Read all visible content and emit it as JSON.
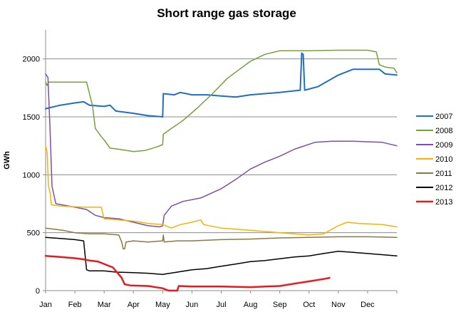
{
  "chart_data": {
    "type": "line",
    "title": "Short range gas storage",
    "xlabel": "",
    "ylabel": "GWh",
    "categories": [
      "Jan",
      "Feb",
      "Mar",
      "Apr",
      "May",
      "Jun",
      "Jul",
      "Aug",
      "Sep",
      "Oct",
      "Nov",
      "Dec"
    ],
    "xlim": [
      0,
      12
    ],
    "ylim": [
      0,
      2250
    ],
    "yticks": [
      0,
      500,
      1000,
      1500,
      2000
    ],
    "grid": true,
    "legend": "right",
    "series": [
      {
        "name": "2007",
        "color": "#1F6FC0",
        "width": 2,
        "points": [
          [
            0,
            1570
          ],
          [
            0.5,
            1600
          ],
          [
            1.0,
            1620
          ],
          [
            1.3,
            1630
          ],
          [
            1.5,
            1600
          ],
          [
            2.0,
            1590
          ],
          [
            2.2,
            1600
          ],
          [
            2.4,
            1550
          ],
          [
            3.0,
            1530
          ],
          [
            3.5,
            1510
          ],
          [
            4.0,
            1500
          ],
          [
            4.02,
            1700
          ],
          [
            4.4,
            1690
          ],
          [
            4.6,
            1710
          ],
          [
            5.0,
            1690
          ],
          [
            5.5,
            1690
          ],
          [
            6.0,
            1680
          ],
          [
            6.5,
            1670
          ],
          [
            7.0,
            1690
          ],
          [
            8.0,
            1710
          ],
          [
            8.7,
            1730
          ],
          [
            8.75,
            2050
          ],
          [
            8.8,
            2040
          ],
          [
            8.85,
            1730
          ],
          [
            9.3,
            1760
          ],
          [
            10.0,
            1860
          ],
          [
            10.5,
            1910
          ],
          [
            11.0,
            1910
          ],
          [
            11.4,
            1910
          ],
          [
            11.6,
            1870
          ],
          [
            12.0,
            1860
          ]
        ]
      },
      {
        "name": "2008",
        "color": "#77A03C",
        "width": 1.5,
        "points": [
          [
            0,
            1800
          ],
          [
            0.05,
            1770
          ],
          [
            0.1,
            1800
          ],
          [
            1.4,
            1800
          ],
          [
            1.6,
            1600
          ],
          [
            1.7,
            1400
          ],
          [
            1.9,
            1330
          ],
          [
            2.0,
            1300
          ],
          [
            2.2,
            1230
          ],
          [
            2.5,
            1220
          ],
          [
            3.0,
            1200
          ],
          [
            3.4,
            1210
          ],
          [
            3.8,
            1240
          ],
          [
            4.0,
            1260
          ],
          [
            4.02,
            1350
          ],
          [
            4.3,
            1400
          ],
          [
            4.7,
            1470
          ],
          [
            5.2,
            1580
          ],
          [
            5.7,
            1700
          ],
          [
            6.2,
            1830
          ],
          [
            7.0,
            1980
          ],
          [
            7.5,
            2040
          ],
          [
            8.0,
            2070
          ],
          [
            9.0,
            2070
          ],
          [
            10.0,
            2075
          ],
          [
            11.0,
            2075
          ],
          [
            11.3,
            2060
          ],
          [
            11.4,
            1950
          ],
          [
            11.6,
            1930
          ],
          [
            11.9,
            1920
          ],
          [
            12.0,
            1880
          ]
        ]
      },
      {
        "name": "2009",
        "color": "#7B4FA6",
        "width": 1.5,
        "points": [
          [
            0,
            1870
          ],
          [
            0.08,
            1840
          ],
          [
            0.15,
            1400
          ],
          [
            0.22,
            900
          ],
          [
            0.35,
            750
          ],
          [
            1.0,
            720
          ],
          [
            1.4,
            700
          ],
          [
            1.7,
            650
          ],
          [
            2.0,
            630
          ],
          [
            2.5,
            620
          ],
          [
            3.0,
            590
          ],
          [
            3.5,
            560
          ],
          [
            3.9,
            550
          ],
          [
            4.0,
            560
          ],
          [
            4.05,
            650
          ],
          [
            4.3,
            730
          ],
          [
            4.7,
            770
          ],
          [
            5.3,
            800
          ],
          [
            6.0,
            880
          ],
          [
            6.5,
            960
          ],
          [
            7.0,
            1050
          ],
          [
            7.5,
            1110
          ],
          [
            8.0,
            1160
          ],
          [
            8.5,
            1220
          ],
          [
            9.2,
            1280
          ],
          [
            9.8,
            1290
          ],
          [
            10.5,
            1290
          ],
          [
            11.5,
            1280
          ],
          [
            12.0,
            1250
          ]
        ]
      },
      {
        "name": "2010",
        "color": "#F2B400",
        "width": 1.5,
        "points": [
          [
            0,
            1250
          ],
          [
            0.05,
            1200
          ],
          [
            0.1,
            900
          ],
          [
            0.15,
            850
          ],
          [
            0.2,
            740
          ],
          [
            0.5,
            730
          ],
          [
            1.3,
            720
          ],
          [
            1.9,
            720
          ],
          [
            2.0,
            620
          ],
          [
            2.5,
            610
          ],
          [
            3.0,
            600
          ],
          [
            3.5,
            580
          ],
          [
            4.0,
            570
          ],
          [
            4.1,
            560
          ],
          [
            4.3,
            540
          ],
          [
            4.6,
            570
          ],
          [
            5.0,
            590
          ],
          [
            5.3,
            610
          ],
          [
            5.4,
            570
          ],
          [
            6.0,
            540
          ],
          [
            6.5,
            530
          ],
          [
            7.0,
            520
          ],
          [
            7.5,
            510
          ],
          [
            8.0,
            500
          ],
          [
            8.5,
            490
          ],
          [
            9.0,
            480
          ],
          [
            9.5,
            490
          ],
          [
            10.0,
            560
          ],
          [
            10.3,
            590
          ],
          [
            10.7,
            580
          ],
          [
            11.5,
            570
          ],
          [
            12.0,
            550
          ]
        ]
      },
      {
        "name": "2011",
        "color": "#8A7A40",
        "width": 1.5,
        "points": [
          [
            0,
            540
          ],
          [
            0.6,
            520
          ],
          [
            1.0,
            500
          ],
          [
            1.5,
            490
          ],
          [
            2.0,
            490
          ],
          [
            2.5,
            480
          ],
          [
            2.6,
            420
          ],
          [
            2.65,
            360
          ],
          [
            2.7,
            360
          ],
          [
            2.75,
            420
          ],
          [
            3.0,
            430
          ],
          [
            3.5,
            420
          ],
          [
            4.0,
            430
          ],
          [
            4.02,
            480
          ],
          [
            4.05,
            420
          ],
          [
            4.5,
            430
          ],
          [
            5.0,
            430
          ],
          [
            6.0,
            440
          ],
          [
            7.0,
            445
          ],
          [
            8.0,
            455
          ],
          [
            9.0,
            460
          ],
          [
            10.0,
            465
          ],
          [
            11.0,
            465
          ],
          [
            12.0,
            460
          ]
        ]
      },
      {
        "name": "2012",
        "color": "#000000",
        "width": 1.5,
        "points": [
          [
            0,
            460
          ],
          [
            0.5,
            450
          ],
          [
            1.0,
            440
          ],
          [
            1.3,
            430
          ],
          [
            1.4,
            180
          ],
          [
            1.5,
            170
          ],
          [
            2.0,
            170
          ],
          [
            2.4,
            160
          ],
          [
            3.0,
            155
          ],
          [
            3.5,
            150
          ],
          [
            4.0,
            140
          ],
          [
            4.5,
            160
          ],
          [
            5.0,
            180
          ],
          [
            5.5,
            190
          ],
          [
            6.0,
            210
          ],
          [
            6.5,
            230
          ],
          [
            7.0,
            250
          ],
          [
            7.5,
            260
          ],
          [
            8.0,
            275
          ],
          [
            8.5,
            290
          ],
          [
            9.0,
            300
          ],
          [
            9.5,
            320
          ],
          [
            10.0,
            340
          ],
          [
            10.5,
            330
          ],
          [
            11.0,
            320
          ],
          [
            12.0,
            300
          ]
        ]
      },
      {
        "name": "2013",
        "color": "#E8191E",
        "width": 2.5,
        "points": [
          [
            0,
            300
          ],
          [
            0.5,
            290
          ],
          [
            1.0,
            280
          ],
          [
            1.3,
            270
          ],
          [
            1.5,
            260
          ],
          [
            1.8,
            250
          ],
          [
            2.0,
            230
          ],
          [
            2.3,
            200
          ],
          [
            2.5,
            140
          ],
          [
            2.6,
            110
          ],
          [
            2.7,
            55
          ],
          [
            2.9,
            45
          ],
          [
            3.5,
            40
          ],
          [
            4.0,
            20
          ],
          [
            4.2,
            0
          ],
          [
            4.5,
            0
          ],
          [
            4.55,
            40
          ],
          [
            5.0,
            35
          ],
          [
            6.0,
            35
          ],
          [
            7.0,
            30
          ],
          [
            8.0,
            40
          ],
          [
            8.5,
            60
          ],
          [
            9.0,
            80
          ],
          [
            9.5,
            100
          ],
          [
            9.7,
            110
          ]
        ]
      }
    ]
  }
}
